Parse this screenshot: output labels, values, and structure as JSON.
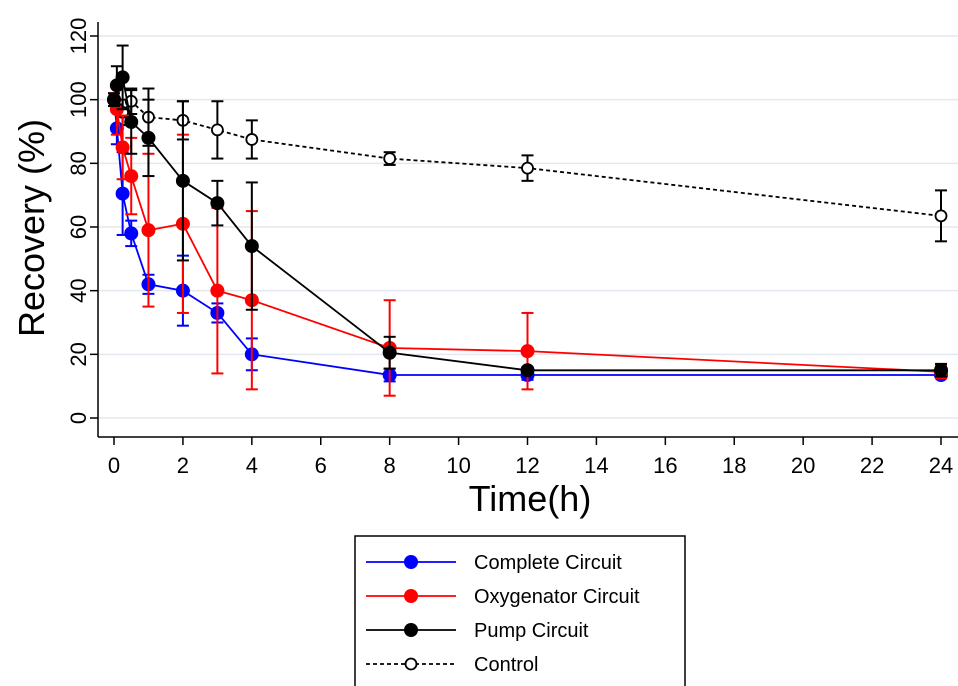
{
  "chart_data": {
    "type": "line",
    "xlabel": "Time(h)",
    "ylabel": "Recovery (%)",
    "xlim": [
      0,
      24
    ],
    "ylim": [
      0,
      120
    ],
    "xticks": [
      "0",
      "2",
      "4",
      "6",
      "8",
      "10",
      "12",
      "14",
      "16",
      "18",
      "20",
      "22",
      "24"
    ],
    "yticks": [
      "0",
      "20",
      "40",
      "60",
      "80",
      "100",
      "120"
    ],
    "grid": "horizontal",
    "legend_position": "bottom",
    "series": [
      {
        "name": "Complete Circuit",
        "color": "#0000ff",
        "style": "solid",
        "marker": "filled-circle",
        "x": [
          0,
          0.083,
          0.25,
          0.5,
          1,
          2,
          3,
          4,
          8,
          12,
          24
        ],
        "y": [
          100,
          91,
          70.5,
          58,
          42,
          40,
          33,
          20,
          13.5,
          13.5,
          13.5
        ],
        "err": [
          1,
          5,
          13,
          4,
          3,
          11,
          3,
          5,
          2,
          1.5,
          1
        ]
      },
      {
        "name": "Oxygenator Circuit",
        "color": "#ff0000",
        "style": "solid",
        "marker": "filled-circle",
        "x": [
          0,
          0.083,
          0.25,
          0.5,
          1,
          2,
          3,
          4,
          8,
          12,
          24
        ],
        "y": [
          100,
          97,
          85,
          76,
          59,
          61,
          40,
          37,
          22,
          21,
          14.5
        ],
        "err": [
          2,
          8,
          10,
          12,
          24,
          28,
          26,
          28,
          15,
          12,
          2
        ]
      },
      {
        "name": "Pump Circuit",
        "color": "#000000",
        "style": "solid",
        "marker": "filled-circle",
        "x": [
          0,
          0.083,
          0.25,
          0.5,
          1,
          2,
          3,
          4,
          8,
          12,
          24
        ],
        "y": [
          100,
          104.5,
          107,
          93,
          88,
          74.5,
          67.5,
          54,
          20.5,
          15,
          15
        ],
        "err": [
          2,
          6,
          10,
          10,
          12,
          25,
          7,
          20,
          5,
          1,
          2
        ]
      },
      {
        "name": "Control",
        "color": "#000000",
        "style": "dashed",
        "marker": "open-circle",
        "x": [
          0,
          0.25,
          0.5,
          1,
          2,
          3,
          4,
          8,
          12,
          24
        ],
        "y": [
          100,
          96,
          99.5,
          94.5,
          93.5,
          90.5,
          87.5,
          81.5,
          78.5,
          63.5
        ],
        "err": [
          2,
          4,
          4,
          9,
          6,
          9,
          6,
          2,
          4,
          8
        ]
      }
    ]
  }
}
